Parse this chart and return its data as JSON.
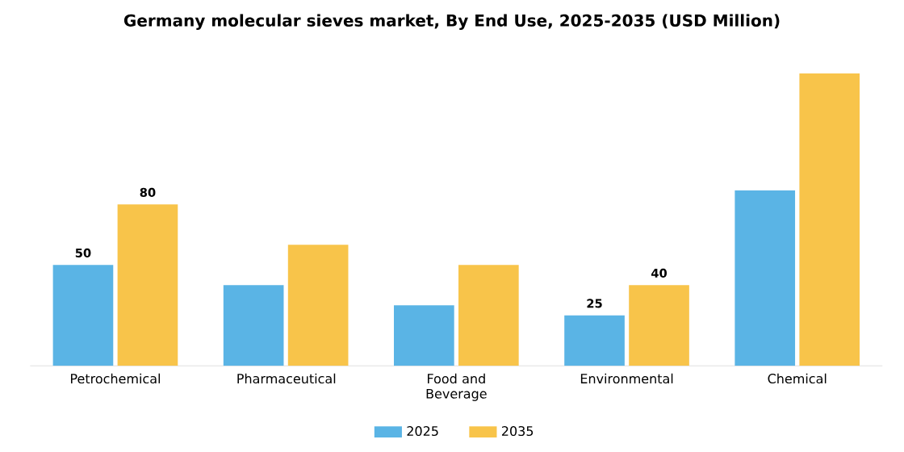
{
  "chart_data": {
    "type": "bar",
    "title": "Germany molecular sieves market, By End Use, 2025-2035 (USD Million)",
    "categories": [
      "Petrochemical",
      "Pharmaceutical",
      "Food and Beverage",
      "Environmental",
      "Chemical"
    ],
    "series": [
      {
        "name": "2025",
        "color": "#5ab4e5",
        "values": [
          50,
          40,
          30,
          25,
          87
        ],
        "value_labels": [
          "50",
          null,
          null,
          "25",
          null
        ]
      },
      {
        "name": "2035",
        "color": "#f8c44a",
        "values": [
          80,
          60,
          50,
          40,
          145
        ],
        "value_labels": [
          "80",
          null,
          null,
          "40",
          null
        ]
      }
    ],
    "legend": "bottom",
    "grid": false
  }
}
